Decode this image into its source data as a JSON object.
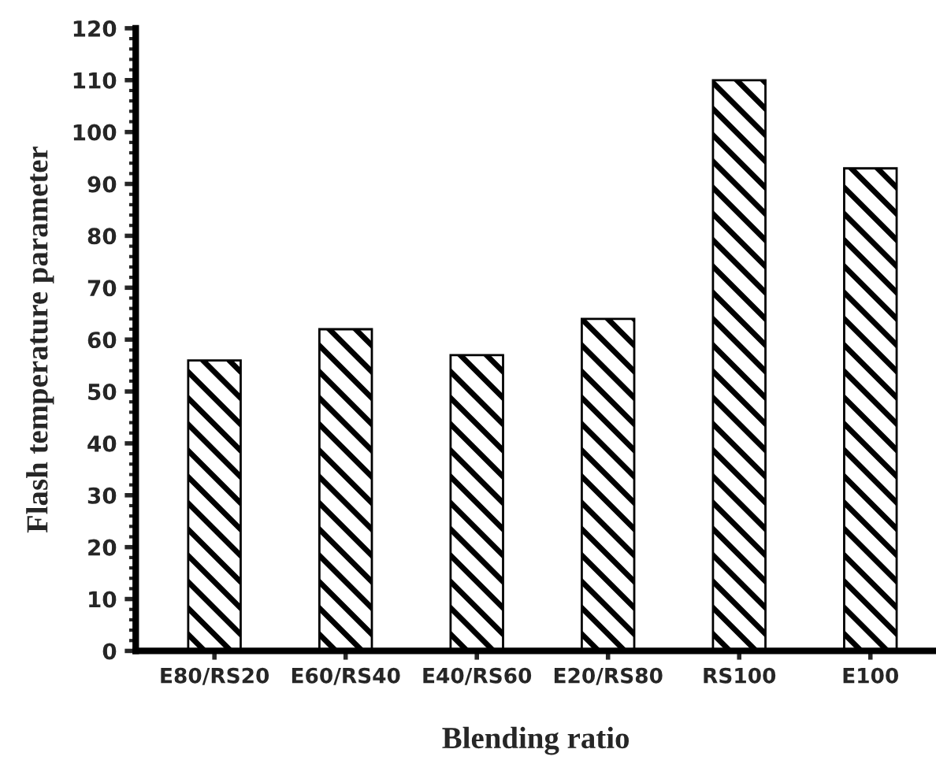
{
  "chart_data": {
    "type": "bar",
    "xlabel": "Blending ratio",
    "ylabel": "Flash temperature parameter",
    "categories": [
      "E80/RS20",
      "E60/RS40",
      "E40/RS60",
      "E20/RS80",
      "RS100",
      "E100"
    ],
    "values": [
      56,
      62,
      57,
      64,
      110,
      93
    ],
    "color": "#000000",
    "ylim": [
      0,
      120
    ],
    "yticks": [
      0,
      10,
      20,
      30,
      40,
      50,
      60,
      70,
      80,
      90,
      100,
      110,
      120
    ],
    "grid": false,
    "legend": false
  }
}
